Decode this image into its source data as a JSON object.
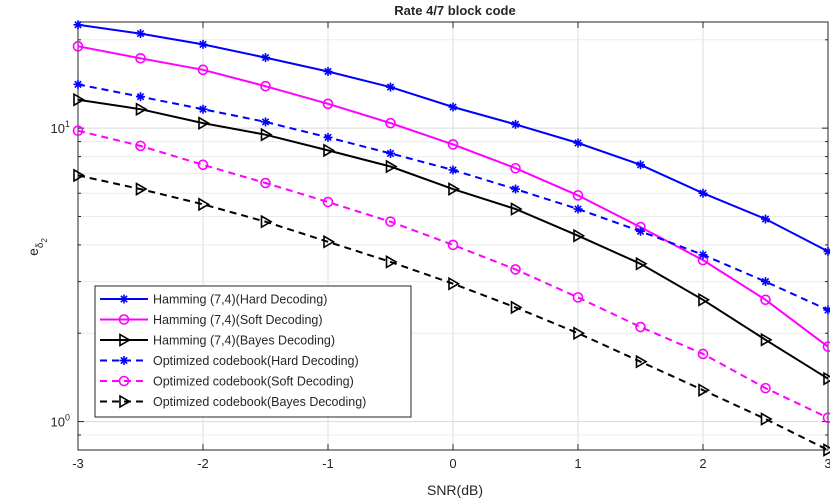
{
  "chart_data": {
    "type": "line",
    "title": "Rate 4/7 block code",
    "xlabel": "SNR(dB)",
    "ylabel": "e",
    "ylabel_sub": "δ",
    "ylabel_subsub": "2",
    "xlim": [
      -3,
      3
    ],
    "ylim": [
      0.8,
      23
    ],
    "yscale": "log",
    "grid": true,
    "legend_position": "bottom-left",
    "x_ticks": [
      "-3",
      "-2",
      "-1",
      "0",
      "1",
      "2",
      "3"
    ],
    "y_ticks": [
      {
        "value": 1,
        "base": "10",
        "exp": "0"
      },
      {
        "value": 10,
        "base": "10",
        "exp": "1"
      }
    ],
    "x": [
      -3,
      -2.5,
      -2,
      -1.5,
      -1,
      -0.5,
      0,
      0.5,
      1,
      1.5,
      2,
      2.5,
      3
    ],
    "series": [
      {
        "name": "Hamming (7,4)(Hard Decoding)",
        "color": "#0000ff",
        "dash": "solid",
        "marker": "asterisk",
        "values": [
          22.5,
          21.0,
          19.3,
          17.4,
          15.6,
          13.8,
          11.8,
          10.3,
          8.9,
          7.5,
          6.0,
          4.9,
          3.8
        ]
      },
      {
        "name": "Hamming (7,4)(Soft Decoding)",
        "color": "#ff00ff",
        "dash": "solid",
        "marker": "circle",
        "values": [
          19.0,
          17.3,
          15.8,
          13.9,
          12.1,
          10.4,
          8.8,
          7.3,
          5.9,
          4.6,
          3.55,
          2.6,
          1.8
        ]
      },
      {
        "name": "Hamming (7,4)(Bayes Decoding)",
        "color": "#000000",
        "dash": "solid",
        "marker": "triangle-right",
        "values": [
          12.5,
          11.6,
          10.4,
          9.5,
          8.4,
          7.4,
          6.2,
          5.3,
          4.3,
          3.45,
          2.6,
          1.9,
          1.4
        ]
      },
      {
        "name": "Optimized codebook(Hard Decoding)",
        "color": "#0000ff",
        "dash": "dashed",
        "marker": "asterisk",
        "values": [
          14.1,
          12.8,
          11.6,
          10.5,
          9.3,
          8.2,
          7.2,
          6.2,
          5.3,
          4.45,
          3.7,
          3.0,
          2.4
        ]
      },
      {
        "name": "Optimized codebook(Soft Decoding)",
        "color": "#ff00ff",
        "dash": "dashed",
        "marker": "circle",
        "values": [
          9.8,
          8.7,
          7.5,
          6.5,
          5.6,
          4.8,
          4.0,
          3.3,
          2.65,
          2.1,
          1.7,
          1.3,
          1.03
        ]
      },
      {
        "name": "Optimized codebook(Bayes Decoding)",
        "color": "#000000",
        "dash": "dashed",
        "marker": "triangle-right",
        "values": [
          6.9,
          6.2,
          5.5,
          4.8,
          4.1,
          3.5,
          2.95,
          2.45,
          2.0,
          1.6,
          1.28,
          1.02,
          0.8
        ]
      }
    ]
  }
}
